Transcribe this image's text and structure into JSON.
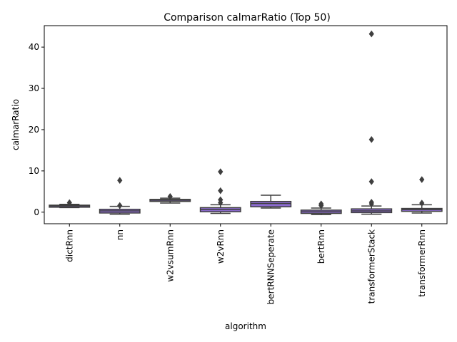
{
  "chart_data": {
    "type": "box",
    "title": "Comparison calmarRatio (Top 50)",
    "xlabel": "algorithm",
    "ylabel": "calmarRatio",
    "ylim": [
      -2.8,
      45.2
    ],
    "yticks": [
      0,
      10,
      20,
      30,
      40
    ],
    "box_color": "#8c6bd0",
    "edge_color": "#3f3f3f",
    "categories": [
      "dictRnn",
      "nn",
      "w2vsumRnn",
      "w2vRnn",
      "bertRNNSeperate",
      "bertRnn",
      "transformerStack",
      "transformerRnn"
    ],
    "boxes": [
      {
        "name": "dictRnn",
        "q1": 1.2,
        "median": 1.5,
        "q3": 1.7,
        "whisker_low": 1.1,
        "whisker_high": 1.9,
        "outliers": [
          2.3
        ]
      },
      {
        "name": "nn",
        "q1": -0.2,
        "median": 0.3,
        "q3": 0.7,
        "whisker_low": -0.5,
        "whisker_high": 1.4,
        "outliers": [
          1.6,
          7.7
        ]
      },
      {
        "name": "w2vsumRnn",
        "q1": 2.6,
        "median": 2.9,
        "q3": 3.1,
        "whisker_low": 2.2,
        "whisker_high": 3.4,
        "outliers": [
          3.8
        ]
      },
      {
        "name": "w2vRnn",
        "q1": 0.1,
        "median": 0.6,
        "q3": 1.1,
        "whisker_low": -0.3,
        "whisker_high": 1.8,
        "outliers": [
          2.3,
          3.0,
          5.2,
          9.8
        ]
      },
      {
        "name": "bertRNNSeperate",
        "q1": 1.3,
        "median": 2.1,
        "q3": 2.6,
        "whisker_low": 1.0,
        "whisker_high": 4.1,
        "outliers": []
      },
      {
        "name": "bertRnn",
        "q1": -0.3,
        "median": 0.1,
        "q3": 0.5,
        "whisker_low": -0.6,
        "whisker_high": 1.0,
        "outliers": [
          1.6,
          2.0
        ]
      },
      {
        "name": "transformerStack",
        "q1": -0.1,
        "median": 0.3,
        "q3": 0.8,
        "whisker_low": -0.5,
        "whisker_high": 1.5,
        "outliers": [
          2.0,
          2.4,
          7.4,
          17.6,
          43.2
        ]
      },
      {
        "name": "transformerRnn",
        "q1": 0.2,
        "median": 0.6,
        "q3": 0.9,
        "whisker_low": -0.2,
        "whisker_high": 1.8,
        "outliers": [
          2.2,
          7.9
        ]
      }
    ]
  }
}
